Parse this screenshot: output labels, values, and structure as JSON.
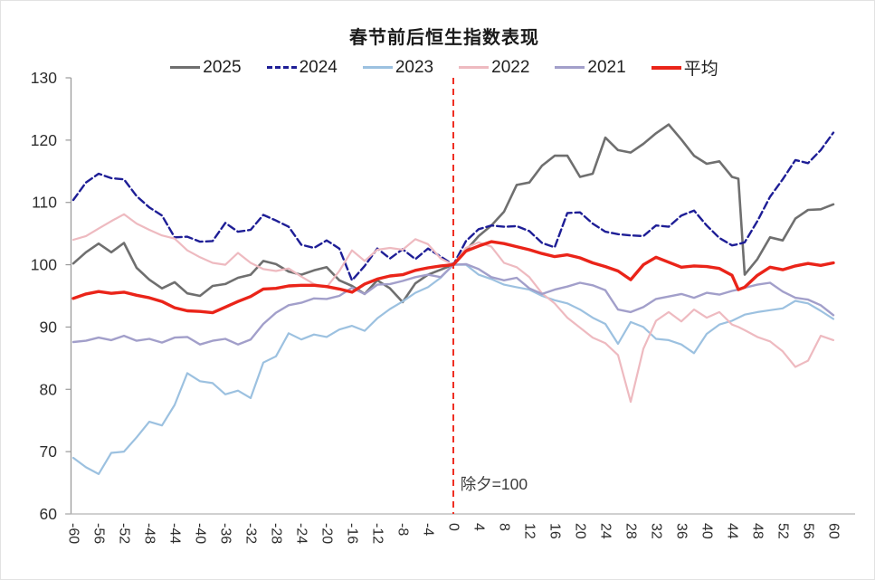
{
  "chart_data": {
    "type": "line",
    "title": "春节前后恒生指数表现",
    "xlabel": "",
    "ylabel": "",
    "xlim": [
      -60,
      60
    ],
    "ylim": [
      60,
      130
    ],
    "xticks": [
      -60,
      -56,
      -52,
      -48,
      -44,
      -40,
      -36,
      -32,
      -28,
      -24,
      -20,
      -16,
      -12,
      -8,
      -4,
      0,
      4,
      8,
      12,
      16,
      20,
      24,
      28,
      32,
      36,
      40,
      44,
      48,
      52,
      56,
      60
    ],
    "yticks": [
      60,
      70,
      80,
      90,
      100,
      110,
      120,
      130
    ],
    "grid": false,
    "legend_position": "top",
    "vline": {
      "x": 0,
      "color": "#ef2f23",
      "style": "dashed"
    },
    "annotation": {
      "text": "除夕=100",
      "x": 1.1,
      "y": 64.8
    },
    "x": [
      -60,
      -58,
      -56,
      -54,
      -52,
      -50,
      -48,
      -46,
      -44,
      -42,
      -40,
      -38,
      -36,
      -34,
      -32,
      -30,
      -28,
      -26,
      -24,
      -22,
      -20,
      -18,
      -16,
      -14,
      -12,
      -10,
      -8,
      -6,
      -4,
      -2,
      0,
      2,
      4,
      6,
      8,
      10,
      12,
      14,
      16,
      18,
      20,
      22,
      24,
      26,
      28,
      30,
      32,
      34,
      36,
      38,
      40,
      42,
      44,
      45,
      46,
      48,
      50,
      52,
      54,
      56,
      58,
      60
    ],
    "series": [
      {
        "name": "2025",
        "color": "#6f6f6f",
        "dash": null,
        "width": 2.6,
        "values": [
          100.2,
          102.0,
          103.4,
          102.0,
          103.5,
          99.5,
          97.6,
          96.2,
          97.2,
          95.4,
          95.0,
          96.6,
          96.9,
          97.9,
          98.4,
          100.6,
          100.1,
          98.9,
          98.4,
          99.1,
          99.6,
          97.5,
          96.6,
          95.3,
          97.5,
          96.2,
          94.0,
          97.0,
          98.4,
          99.2,
          100.0,
          102.3,
          104.6,
          106.3,
          108.5,
          112.8,
          113.2,
          115.9,
          117.5,
          117.5,
          114.1,
          114.6,
          120.4,
          118.4,
          118.0,
          119.4,
          121.1,
          122.5,
          120.1,
          117.5,
          116.2,
          116.6,
          114.1,
          113.8,
          98.4,
          100.9,
          104.4,
          103.9,
          107.4,
          108.8,
          108.9,
          109.7
        ]
      },
      {
        "name": "2024",
        "color": "#1e1e96",
        "dash": "8 4",
        "width": 2.4,
        "values": [
          110.4,
          113.2,
          114.6,
          113.9,
          113.7,
          111.0,
          109.2,
          107.9,
          104.4,
          104.5,
          103.7,
          103.8,
          106.7,
          105.3,
          105.6,
          108.0,
          107.1,
          106.1,
          103.2,
          102.7,
          103.9,
          102.6,
          97.5,
          99.8,
          102.6,
          101.0,
          102.5,
          100.9,
          102.6,
          101.3,
          100.0,
          103.8,
          105.7,
          106.3,
          106.1,
          106.2,
          105.4,
          103.5,
          102.8,
          108.3,
          108.4,
          106.6,
          105.3,
          104.9,
          104.7,
          104.6,
          106.3,
          106.1,
          107.9,
          108.7,
          106.3,
          104.3,
          103.1,
          103.3,
          103.6,
          107.0,
          110.9,
          113.7,
          116.8,
          116.3,
          118.4,
          121.2
        ]
      },
      {
        "name": "2023",
        "color": "#9cc1e0",
        "dash": null,
        "width": 2.2,
        "values": [
          69.0,
          67.5,
          66.4,
          69.8,
          70.0,
          72.3,
          74.8,
          74.2,
          77.5,
          82.6,
          81.3,
          81.0,
          79.2,
          79.8,
          78.6,
          84.3,
          85.3,
          89.0,
          88.0,
          88.8,
          88.4,
          89.6,
          90.2,
          89.4,
          91.4,
          92.9,
          94.1,
          95.5,
          96.4,
          97.9,
          100.0,
          100.0,
          98.4,
          97.7,
          96.8,
          96.4,
          96.0,
          95.0,
          94.3,
          93.8,
          92.8,
          91.5,
          90.5,
          87.3,
          90.8,
          90.0,
          88.1,
          87.9,
          87.2,
          85.8,
          88.9,
          90.4,
          91.0,
          91.5,
          92.0,
          92.4,
          92.7,
          93.0,
          94.2,
          93.8,
          92.6,
          91.3
        ]
      },
      {
        "name": "2022",
        "color": "#eebac0",
        "dash": null,
        "width": 2.2,
        "values": [
          104.0,
          104.6,
          105.8,
          107.0,
          108.1,
          106.6,
          105.6,
          104.7,
          104.2,
          102.3,
          101.2,
          100.3,
          100.0,
          101.9,
          100.3,
          99.3,
          99.0,
          99.4,
          98.1,
          96.9,
          96.4,
          99.0,
          102.3,
          100.6,
          102.4,
          102.7,
          102.4,
          104.1,
          103.3,
          101.0,
          100.0,
          102.7,
          103.6,
          102.9,
          100.3,
          99.6,
          98.0,
          95.4,
          93.8,
          91.5,
          89.9,
          88.3,
          87.4,
          85.5,
          78.0,
          86.5,
          91.0,
          92.4,
          90.9,
          92.8,
          91.5,
          92.4,
          90.4,
          90.0,
          89.5,
          88.4,
          87.7,
          86.1,
          83.6,
          84.6,
          88.6,
          87.9
        ]
      },
      {
        "name": "2021",
        "color": "#a29fca",
        "dash": null,
        "width": 2.4,
        "values": [
          87.6,
          87.8,
          88.3,
          87.9,
          88.6,
          87.8,
          88.1,
          87.5,
          88.3,
          88.4,
          87.2,
          87.8,
          88.1,
          87.2,
          88.0,
          90.5,
          92.3,
          93.5,
          93.9,
          94.6,
          94.5,
          95.0,
          96.3,
          95.3,
          96.8,
          96.9,
          97.4,
          98.0,
          98.4,
          98.0,
          100.0,
          100.1,
          99.3,
          98.0,
          97.5,
          97.9,
          96.2,
          95.3,
          96.0,
          96.5,
          97.1,
          96.7,
          95.9,
          92.8,
          92.4,
          93.2,
          94.5,
          94.9,
          95.3,
          94.7,
          95.5,
          95.2,
          95.8,
          96.0,
          96.3,
          96.8,
          97.1,
          95.7,
          94.7,
          94.4,
          93.5,
          91.9
        ]
      },
      {
        "name": "平均",
        "color": "#ea2419",
        "dash": null,
        "width": 3.4,
        "values": [
          94.6,
          95.3,
          95.7,
          95.4,
          95.6,
          95.1,
          94.7,
          94.1,
          93.1,
          92.6,
          92.5,
          92.3,
          93.2,
          94.1,
          94.9,
          96.1,
          96.2,
          96.6,
          96.7,
          96.7,
          96.5,
          96.1,
          95.6,
          96.9,
          97.7,
          98.2,
          98.4,
          99.1,
          99.5,
          99.8,
          100.0,
          102.2,
          103.0,
          103.7,
          103.4,
          102.9,
          102.4,
          101.8,
          101.3,
          101.6,
          101.1,
          100.3,
          99.7,
          99.0,
          97.6,
          100.0,
          101.2,
          100.4,
          99.6,
          99.8,
          99.7,
          99.4,
          98.3,
          96.0,
          96.4,
          98.3,
          99.6,
          99.2,
          99.8,
          100.2,
          99.9,
          100.3
        ]
      }
    ]
  }
}
